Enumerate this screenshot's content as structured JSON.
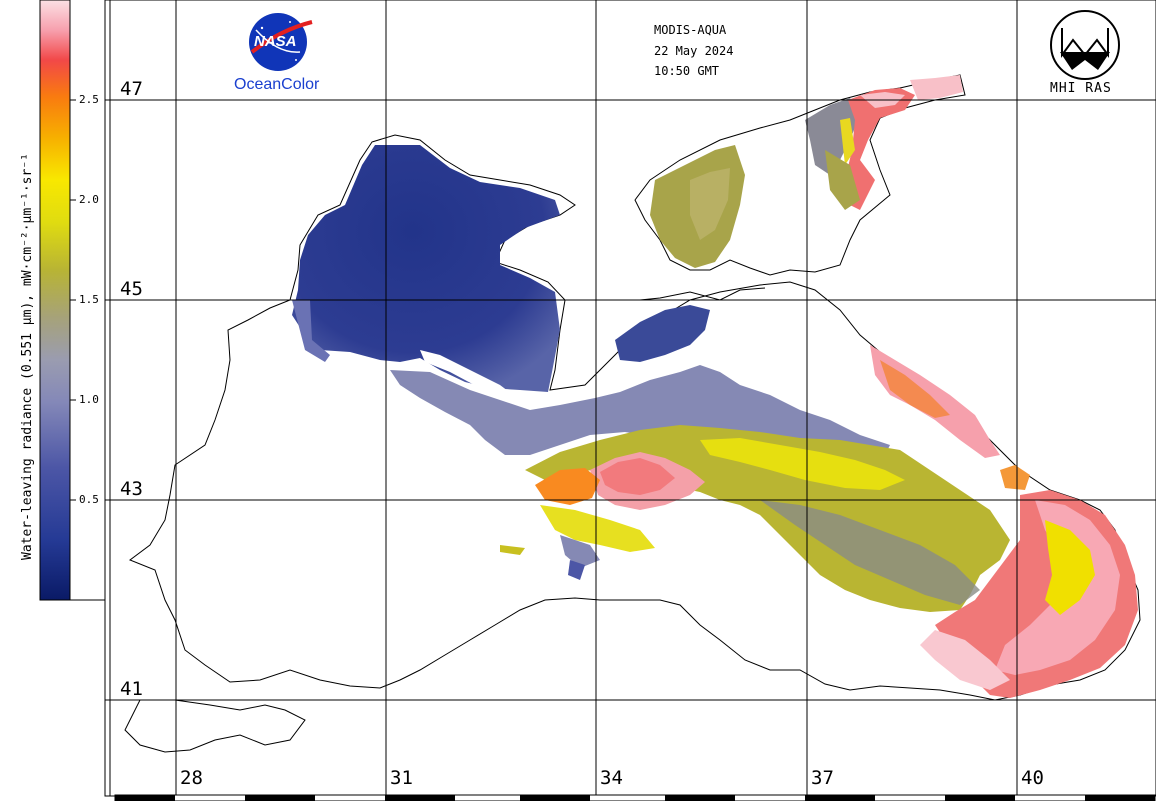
{
  "header": {
    "sensor": "MODIS-AQUA",
    "date": "22 May 2024",
    "time": "10:50 GMT"
  },
  "logos": {
    "nasa_text": "NASA",
    "oceancolor": "OceanColor",
    "mhi": "MHI RAS"
  },
  "colorbar": {
    "title": "Water-leaving radiance (0.551 µm), mW·cm⁻²·µm⁻¹·sr⁻¹",
    "ticks": [
      "2.5",
      "2.0",
      "1.5",
      "1.0",
      "0.5"
    ],
    "tick_values": [
      2.5,
      2.0,
      1.5,
      1.0,
      0.5
    ],
    "range": [
      0.0,
      3.0
    ],
    "colors": [
      "#0a1a66",
      "#253a95",
      "#6a72b4",
      "#9aa0c0",
      "#a8a060",
      "#c8c820",
      "#f0e800",
      "#f5b800",
      "#f97a10",
      "#f24444",
      "#f8a4b0",
      "#fbe0e4"
    ]
  },
  "grid": {
    "lat_labels": [
      "47",
      "45",
      "43",
      "41"
    ],
    "lon_labels": [
      "28",
      "31",
      "34",
      "37",
      "40"
    ]
  },
  "colors": {
    "low": "#2c3a8f",
    "mid": "#b5b33a",
    "high": "#f08080"
  }
}
